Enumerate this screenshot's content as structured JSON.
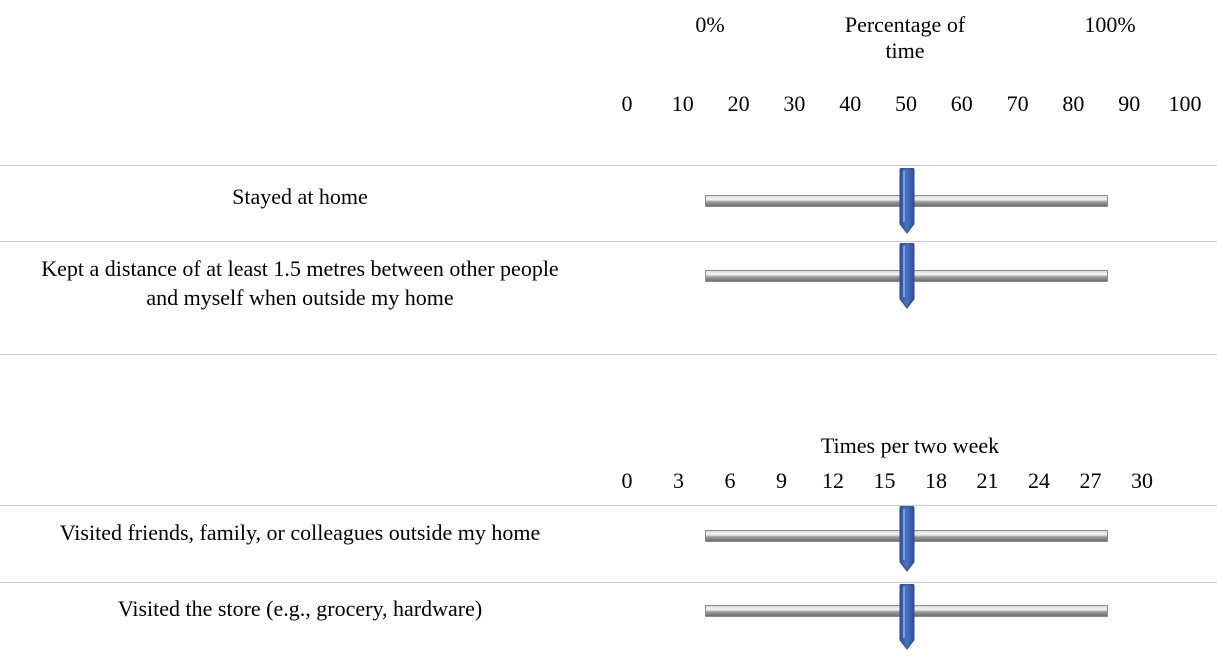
{
  "section1": {
    "left_label": "0%",
    "title_line1": "Percentage of",
    "title_line2": "time",
    "right_label": "100%",
    "ticks": [
      "0",
      "10",
      "20",
      "30",
      "40",
      "50",
      "60",
      "70",
      "80",
      "90",
      "100"
    ],
    "items": [
      {
        "label": "Stayed at home",
        "value": 50
      },
      {
        "label": "Kept a distance of at least 1.5 metres between other people and myself when outside my home",
        "value": 50
      }
    ]
  },
  "section2": {
    "title": "Times per two week",
    "ticks": [
      "0",
      "3",
      "6",
      "9",
      "12",
      "15",
      "18",
      "21",
      "24",
      "27",
      "30"
    ],
    "items": [
      {
        "label": "Visited friends, family, or colleagues outside my home",
        "value": 15
      },
      {
        "label": "Visited the store (e.g., grocery, hardware)",
        "value": 15
      }
    ]
  },
  "colors": {
    "thumb": "#4a72c4",
    "thumb_dark": "#2c4f98",
    "rule": "#c8c8c8"
  },
  "icons": {
    "slider_thumb": "slider-handle-icon"
  }
}
